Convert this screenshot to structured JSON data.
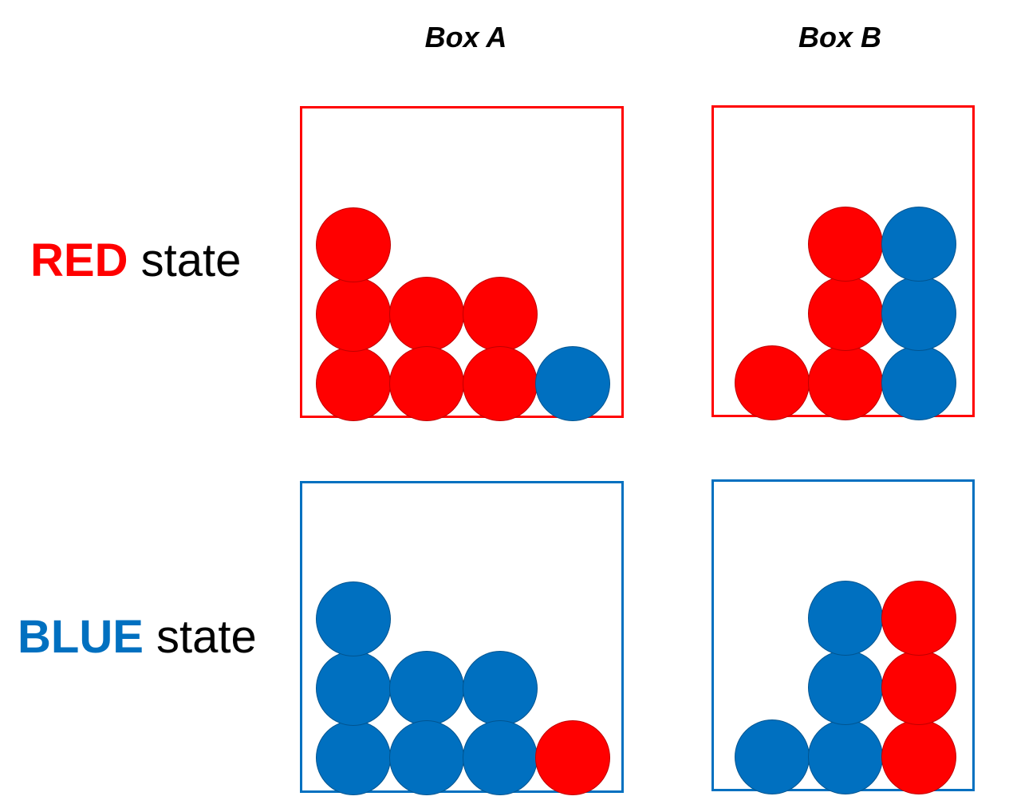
{
  "columns": [
    "Box A",
    "Box B"
  ],
  "colors": {
    "red": "#ff0000",
    "blue": "#0070c0",
    "text": "#000000"
  },
  "rows": [
    {
      "keyword": "RED",
      "suffix": " state",
      "color": "red",
      "boxA": {
        "majority": "red",
        "majority_count": 7,
        "minority_count": 1
      },
      "boxB": {
        "majority": "red",
        "majority_count": 4,
        "minority_count": 3
      }
    },
    {
      "keyword": "BLUE",
      "suffix": " state",
      "color": "blue",
      "boxA": {
        "majority": "blue",
        "majority_count": 7,
        "minority_count": 1
      },
      "boxB": {
        "majority": "blue",
        "majority_count": 4,
        "minority_count": 3
      }
    }
  ]
}
